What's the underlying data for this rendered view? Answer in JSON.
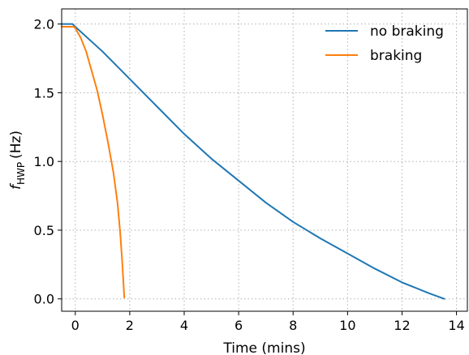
{
  "chart_data": {
    "type": "line",
    "xlabel": "Time (mins)",
    "ylabel_main": "f",
    "ylabel_sub": "HWP",
    "ylabel_unit": "(Hz)",
    "xlim": [
      -0.5,
      14.4
    ],
    "ylim": [
      -0.09,
      2.11
    ],
    "xticks": [
      0,
      2,
      4,
      6,
      8,
      10,
      12,
      14
    ],
    "yticks": [
      0.0,
      0.5,
      1.0,
      1.5,
      2.0
    ],
    "xtick_labels": [
      "0",
      "2",
      "4",
      "6",
      "8",
      "10",
      "12",
      "14"
    ],
    "ytick_labels": [
      "0.0",
      "0.5",
      "1.0",
      "1.5",
      "2.0"
    ],
    "grid": true,
    "legend_position": "top-right",
    "series": [
      {
        "name": "no braking",
        "color": "#1f77b4",
        "x": [
          -0.5,
          -0.1,
          0.0,
          1.0,
          2.0,
          3.0,
          4.0,
          5.0,
          6.0,
          7.0,
          8.0,
          9.0,
          10.0,
          11.0,
          12.0,
          13.0,
          13.55
        ],
        "y": [
          2.0,
          2.0,
          1.98,
          1.8,
          1.6,
          1.4,
          1.2,
          1.02,
          0.86,
          0.7,
          0.56,
          0.44,
          0.33,
          0.22,
          0.12,
          0.04,
          0.0
        ]
      },
      {
        "name": "braking",
        "color": "#ff7f0e",
        "x": [
          -0.5,
          -0.05,
          0.0,
          0.2,
          0.4,
          0.6,
          0.8,
          1.0,
          1.2,
          1.4,
          1.55,
          1.65,
          1.72,
          1.8
        ],
        "y": [
          1.98,
          1.98,
          1.97,
          1.9,
          1.8,
          1.66,
          1.52,
          1.34,
          1.14,
          0.92,
          0.7,
          0.48,
          0.28,
          0.01
        ]
      }
    ]
  }
}
